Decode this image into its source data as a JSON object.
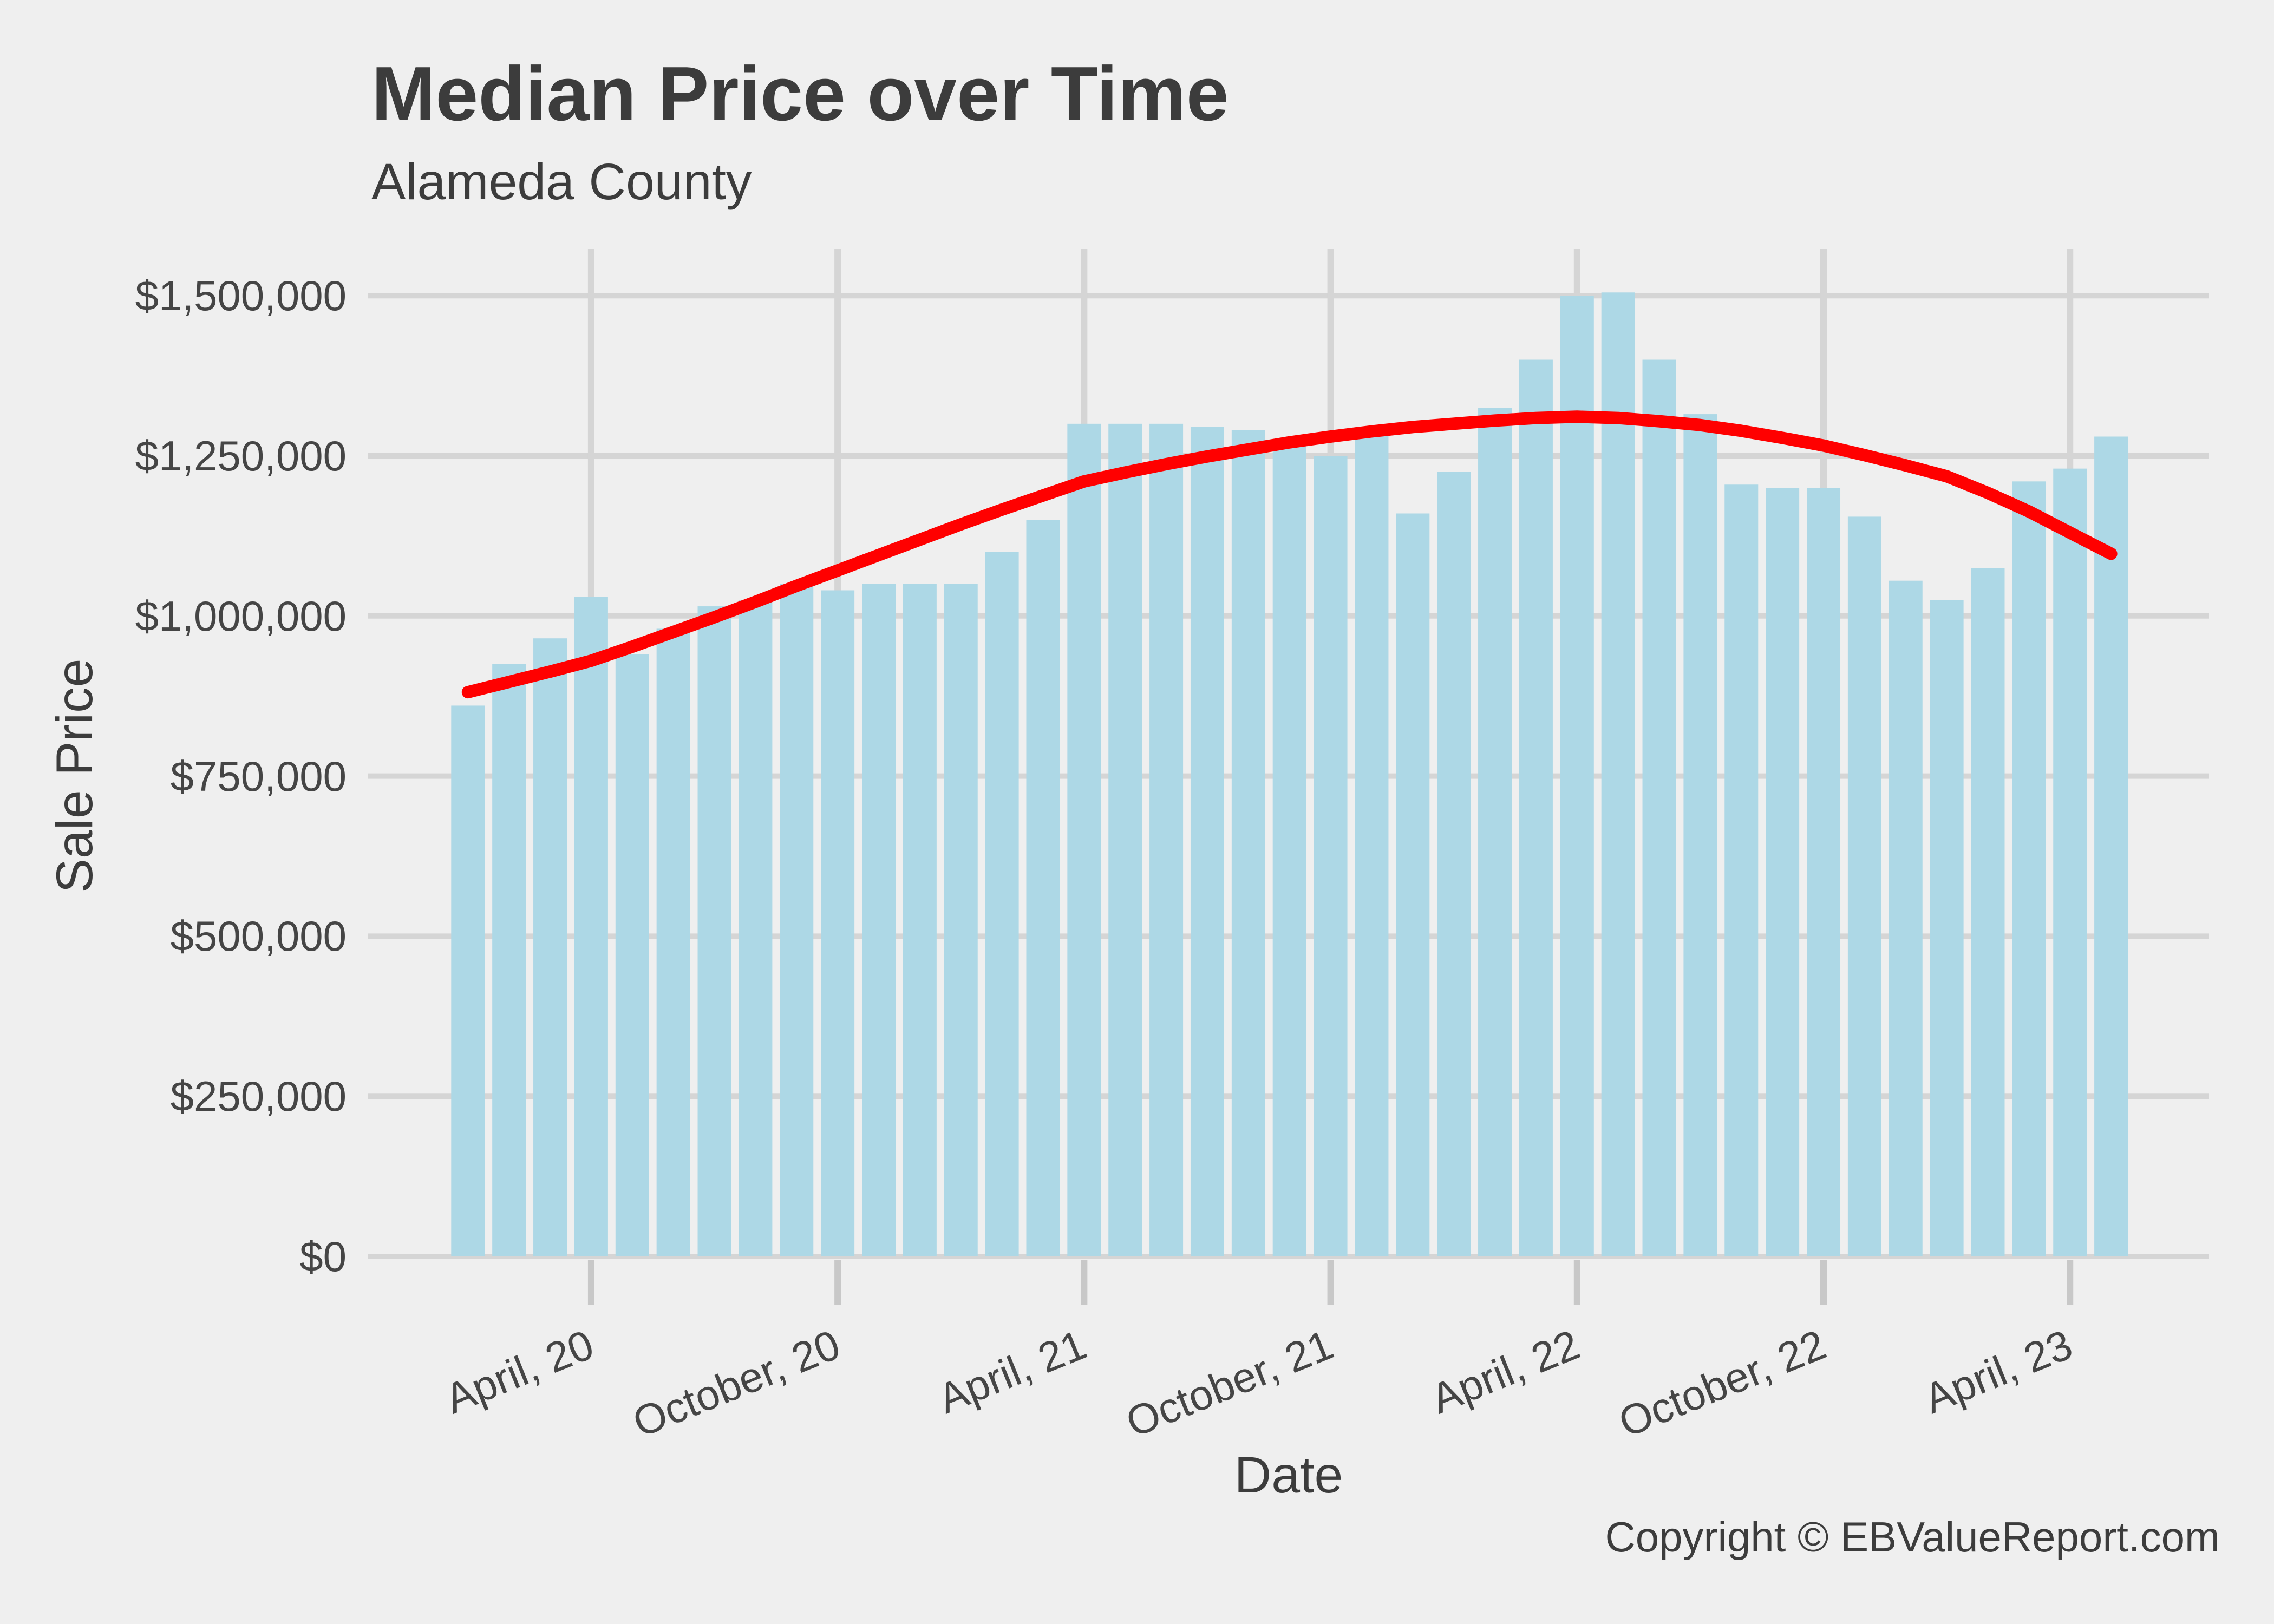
{
  "header": {
    "title": "Median Price over Time",
    "subtitle": "Alameda County"
  },
  "axes": {
    "x_title": "Date",
    "y_title": "Sale Price",
    "y_tick_labels": [
      "$0",
      "$250,000",
      "$500,000",
      "$750,000",
      "$1,000,000",
      "$1,250,000",
      "$1,500,000"
    ],
    "x_tick_labels": [
      "April, 20",
      "October, 20",
      "April, 21",
      "October, 21",
      "April, 22",
      "October, 22",
      "April, 23"
    ]
  },
  "footer": {
    "copyright": "Copyright © EBValueReport.com"
  },
  "colors": {
    "background": "#EFEFEF",
    "gridline": "#D5D5D5",
    "tick_mark": "#C8C8C8",
    "bar": "#ADD8E6",
    "trend": "#FF0000",
    "title_text": "#3C3C3C",
    "tick_text": "#454545"
  },
  "chart_data": {
    "type": "bar",
    "title": "Median Price over Time",
    "subtitle": "Alameda County",
    "xlabel": "Date",
    "ylabel": "Sale Price",
    "ylim": [
      0,
      1500000
    ],
    "y_ticks": [
      0,
      250000,
      500000,
      750000,
      1000000,
      1250000,
      1500000
    ],
    "grid": true,
    "legend_position": "none",
    "categories": [
      "Jan 2020",
      "Feb 2020",
      "Mar 2020",
      "Apr 2020",
      "May 2020",
      "Jun 2020",
      "Jul 2020",
      "Aug 2020",
      "Sep 2020",
      "Oct 2020",
      "Nov 2020",
      "Dec 2020",
      "Jan 2021",
      "Feb 2021",
      "Mar 2021",
      "Apr 2021",
      "May 2021",
      "Jun 2021",
      "Jul 2021",
      "Aug 2021",
      "Sep 2021",
      "Oct 2021",
      "Nov 2021",
      "Dec 2021",
      "Jan 2022",
      "Feb 2022",
      "Mar 2022",
      "Apr 2022",
      "May 2022",
      "Jun 2022",
      "Jul 2022",
      "Aug 2022",
      "Sep 2022",
      "Oct 2022",
      "Nov 2022",
      "Dec 2022",
      "Jan 2023",
      "Feb 2023",
      "Mar 2023",
      "Apr 2023",
      "May 2023"
    ],
    "x_tick_indices": [
      3,
      9,
      15,
      21,
      27,
      33,
      39
    ],
    "series": [
      {
        "name": "Median Sale Price",
        "type": "bar",
        "values": [
          860000,
          925000,
          965000,
          1030000,
          940000,
          980000,
          1015000,
          1025000,
          1050000,
          1040000,
          1050000,
          1050000,
          1050000,
          1100000,
          1150000,
          1300000,
          1300000,
          1300000,
          1295000,
          1290000,
          1270000,
          1250000,
          1295000,
          1160000,
          1225000,
          1325000,
          1400000,
          1500000,
          1505000,
          1400000,
          1315000,
          1205000,
          1200000,
          1200000,
          1155000,
          1055000,
          1025000,
          1075000,
          1210000,
          1230000,
          1280000
        ]
      },
      {
        "name": "Trend",
        "type": "line",
        "values": [
          881000,
          897000,
          913000,
          930000,
          952000,
          975000,
          998000,
          1022000,
          1047000,
          1071000,
          1095000,
          1119000,
          1143000,
          1166000,
          1188000,
          1210000,
          1224000,
          1237000,
          1249000,
          1260000,
          1271000,
          1280000,
          1288000,
          1295000,
          1300000,
          1305000,
          1309000,
          1311000,
          1309000,
          1304000,
          1298000,
          1289000,
          1278000,
          1266000,
          1251000,
          1235000,
          1218000,
          1192000,
          1163000,
          1130000,
          1097000
        ]
      }
    ]
  }
}
